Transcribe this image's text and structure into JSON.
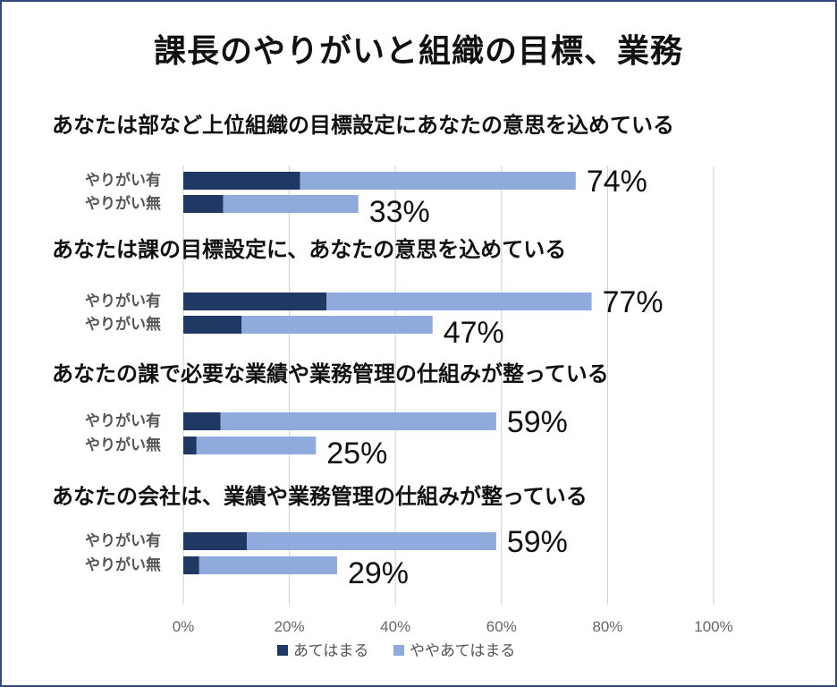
{
  "title": "課長のやりがいと組織の目標、業務",
  "colors": {
    "series1": "#1f3864",
    "series2": "#8faadc",
    "frame": "#2f4b7c"
  },
  "chart_data": {
    "type": "bar",
    "orientation": "horizontal",
    "stacked": true,
    "xlim": [
      0,
      100
    ],
    "x_ticks": [
      "0%",
      "20%",
      "40%",
      "60%",
      "80%",
      "100%"
    ],
    "grid": true,
    "legend_position": "bottom",
    "series_names": [
      "あてはまる",
      "ややあてはまる"
    ],
    "groups": [
      {
        "question": "あなたは部など上位組織の目標設定にあなたの意思を込めている",
        "rows": [
          {
            "label": "やりがい有",
            "values": [
              22,
              52
            ],
            "total_label": "74%"
          },
          {
            "label": "やりがい無",
            "values": [
              7.5,
              25.5
            ],
            "total_label": "33%"
          }
        ]
      },
      {
        "question": "あなたは課の目標設定に、あなたの意思を込めている",
        "rows": [
          {
            "label": "やりがい有",
            "values": [
              27,
              50
            ],
            "total_label": "77%"
          },
          {
            "label": "やりがい無",
            "values": [
              11,
              36
            ],
            "total_label": "47%"
          }
        ]
      },
      {
        "question": "あなたの課で必要な業績や業務管理の仕組みが整っている",
        "rows": [
          {
            "label": "やりがい有",
            "values": [
              7,
              52
            ],
            "total_label": "59%"
          },
          {
            "label": "やりがい無",
            "values": [
              2.5,
              22.5
            ],
            "total_label": "25%"
          }
        ]
      },
      {
        "question": "あなたの会社は、業績や業務管理の仕組みが整っている",
        "rows": [
          {
            "label": "やりがい有",
            "values": [
              12,
              47
            ],
            "total_label": "59%"
          },
          {
            "label": "やりがい無",
            "values": [
              3,
              26
            ],
            "total_label": "29%"
          }
        ]
      }
    ]
  }
}
